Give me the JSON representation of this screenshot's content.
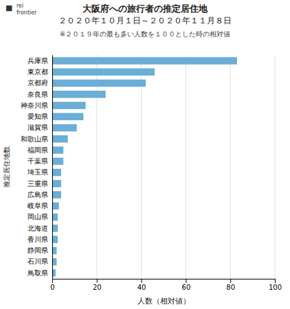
{
  "chart_data": {
    "type": "bar",
    "orientation": "horizontal",
    "title": [
      "大阪府への旅行者の推定居住地",
      "２０２０年１０月１日～２０２０年１１月８日"
    ],
    "subtitle": "※２０１９年の最も多い人数を１００とした時の相対値",
    "annotations": [
      "■",
      "rei",
      "frontier"
    ],
    "xlabel": "人数（相対値）",
    "ylabel": "推定居住地数",
    "categories": [
      "兵庫県",
      "東京都",
      "京都府",
      "奈良県",
      "神奈川県",
      "愛知県",
      "滋賀県",
      "和歌山県",
      "福岡県",
      "千葉県",
      "埼玉県",
      "三重県",
      "広島県",
      "岐阜県",
      "岡山県",
      "北海道",
      "香川県",
      "静岡県",
      "石川県",
      "鳥取県"
    ],
    "values": [
      83,
      46,
      42,
      24,
      15,
      14,
      11,
      7,
      5,
      5,
      4,
      4,
      4,
      3,
      2.5,
      2.5,
      2.5,
      2,
      2,
      1.5
    ],
    "color": "#6baed6",
    "xlim": [
      0,
      100
    ],
    "xticks": [
      0,
      20,
      40,
      60,
      80,
      100
    ],
    "grid": true
  }
}
